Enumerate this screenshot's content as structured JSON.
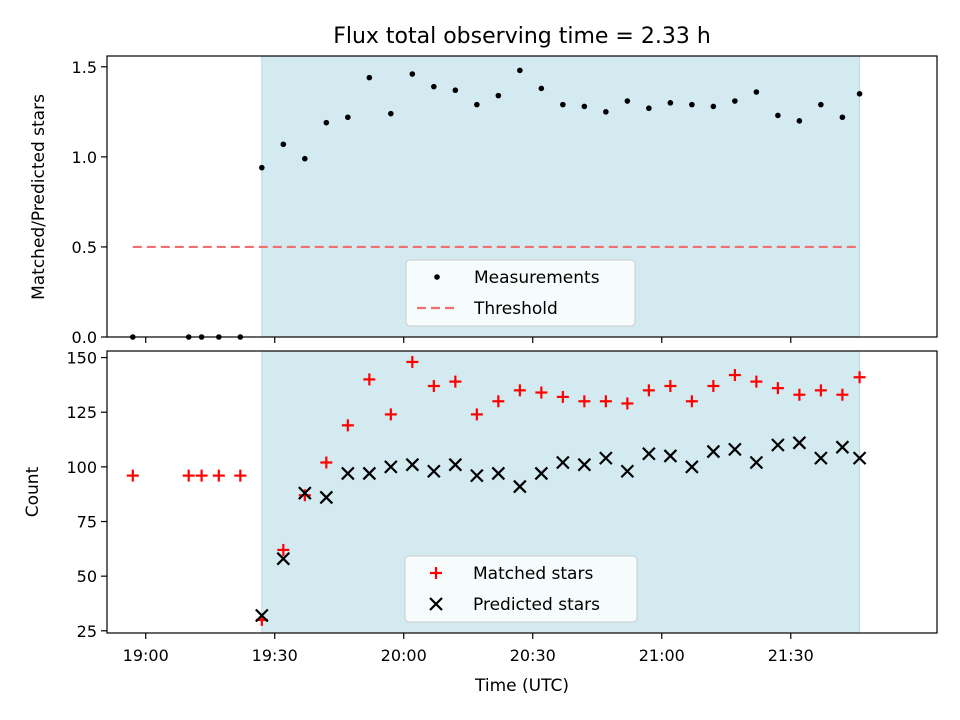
{
  "chart_data": [
    {
      "type": "scatter",
      "title": "Flux total observing time = 2.33 h",
      "ylabel": "Matched/Predicted stars",
      "xlabel": "",
      "x_range": [
        "18:51",
        "22:04"
      ],
      "ylim": [
        0,
        1.56
      ],
      "yticks": [
        "0.0",
        "0.5",
        "1.0",
        "1.5"
      ],
      "ytick_values": [
        0,
        0.5,
        1.0,
        1.5
      ],
      "shaded_region": {
        "start": "19:27",
        "end": "21:46",
        "color": "#d3eaf1"
      },
      "threshold": {
        "name": "Threshold",
        "value": 0.5,
        "x_start": "18:57",
        "x_end": "21:46",
        "color": "#f07070"
      },
      "legend": {
        "placement": "lower-center",
        "entries": [
          "Measurements",
          "Threshold"
        ]
      },
      "series": [
        {
          "name": "Measurements",
          "marker": "dot",
          "color": "#000000",
          "x": [
            "18:57",
            "19:10",
            "19:13",
            "19:17",
            "19:22",
            "19:27",
            "19:32",
            "19:37",
            "19:42",
            "19:47",
            "19:52",
            "19:57",
            "20:02",
            "20:07",
            "20:12",
            "20:17",
            "20:22",
            "20:27",
            "20:32",
            "20:37",
            "20:42",
            "20:47",
            "20:52",
            "20:57",
            "21:02",
            "21:07",
            "21:12",
            "21:17",
            "21:22",
            "21:27",
            "21:32",
            "21:37",
            "21:42",
            "21:46"
          ],
          "values": [
            0,
            0,
            0,
            0,
            0,
            0.94,
            1.07,
            0.99,
            1.19,
            1.22,
            1.44,
            1.24,
            1.46,
            1.39,
            1.37,
            1.29,
            1.34,
            1.48,
            1.38,
            1.29,
            1.28,
            1.25,
            1.31,
            1.27,
            1.3,
            1.29,
            1.28,
            1.31,
            1.36,
            1.23,
            1.2,
            1.29,
            1.22,
            1.35
          ]
        }
      ]
    },
    {
      "type": "scatter",
      "title": "",
      "ylabel": "Count",
      "xlabel": "Time (UTC)",
      "x_range": [
        "18:51",
        "22:04"
      ],
      "xticks": [
        "19:00",
        "19:30",
        "20:00",
        "20:30",
        "21:00",
        "21:30"
      ],
      "ylim": [
        24,
        153
      ],
      "yticks": [
        "25",
        "50",
        "75",
        "100",
        "125",
        "150"
      ],
      "ytick_values": [
        25,
        50,
        75,
        100,
        125,
        150
      ],
      "shaded_region": {
        "start": "19:27",
        "end": "21:46",
        "color": "#d3eaf1"
      },
      "legend": {
        "placement": "lower-center",
        "entries": [
          "Matched stars",
          "Predicted stars"
        ]
      },
      "series": [
        {
          "name": "Matched stars",
          "marker": "plus",
          "color": "#ff0000",
          "x": [
            "18:57",
            "19:10",
            "19:13",
            "19:17",
            "19:22",
            "19:27",
            "19:32",
            "19:37",
            "19:42",
            "19:47",
            "19:52",
            "19:57",
            "20:02",
            "20:07",
            "20:12",
            "20:17",
            "20:22",
            "20:27",
            "20:32",
            "20:37",
            "20:42",
            "20:47",
            "20:52",
            "20:57",
            "21:02",
            "21:07",
            "21:12",
            "21:17",
            "21:22",
            "21:27",
            "21:32",
            "21:37",
            "21:42",
            "21:46"
          ],
          "values": [
            96,
            96,
            96,
            96,
            96,
            30,
            62,
            87,
            102,
            119,
            140,
            124,
            148,
            137,
            139,
            124,
            130,
            135,
            134,
            132,
            130,
            130,
            129,
            135,
            137,
            130,
            137,
            142,
            139,
            136,
            133,
            135,
            133,
            141
          ]
        },
        {
          "name": "Predicted stars",
          "marker": "x",
          "color": "#000000",
          "x": [
            "19:27",
            "19:32",
            "19:37",
            "19:42",
            "19:47",
            "19:52",
            "19:57",
            "20:02",
            "20:07",
            "20:12",
            "20:17",
            "20:22",
            "20:27",
            "20:32",
            "20:37",
            "20:42",
            "20:47",
            "20:52",
            "20:57",
            "21:02",
            "21:07",
            "21:12",
            "21:17",
            "21:22",
            "21:27",
            "21:32",
            "21:37",
            "21:42",
            "21:46"
          ],
          "values": [
            32,
            58,
            88,
            86,
            97,
            97,
            100,
            101,
            98,
            101,
            96,
            97,
            91,
            97,
            102,
            101,
            104,
            98,
            106,
            105,
            100,
            107,
            108,
            102,
            110,
            111,
            104,
            109,
            104
          ]
        }
      ]
    }
  ]
}
